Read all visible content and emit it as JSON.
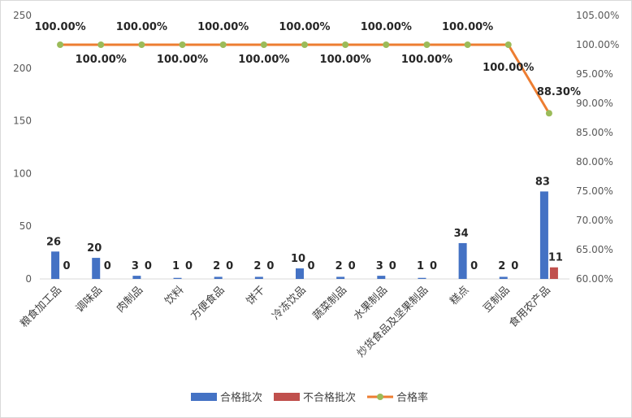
{
  "chart_data": {
    "type": "bar",
    "categories": [
      "粮食加工品",
      "调味品",
      "肉制品",
      "饮料",
      "方便食品",
      "饼干",
      "冷冻饮品",
      "蔬菜制品",
      "水果制品",
      "炒货食品及坚果制品",
      "糕点",
      "豆制品",
      "食用农产品"
    ],
    "series": [
      {
        "name": "合格批次",
        "type": "bar",
        "axis": "left",
        "values": [
          26,
          20,
          3,
          1,
          2,
          2,
          10,
          2,
          3,
          1,
          34,
          2,
          83
        ],
        "labels": [
          "26",
          "20",
          "3",
          "1",
          "2",
          "2",
          "10",
          "2",
          "3",
          "1",
          "34",
          "2",
          "83"
        ],
        "color": "#4472c4"
      },
      {
        "name": "不合格批次",
        "type": "bar",
        "axis": "left",
        "values": [
          0,
          0,
          0,
          0,
          0,
          0,
          0,
          0,
          0,
          0,
          0,
          0,
          11
        ],
        "labels": [
          "0",
          "0",
          "0",
          "0",
          "0",
          "0",
          "0",
          "0",
          "0",
          "0",
          "0",
          "0",
          "11"
        ],
        "color": "#c0504d"
      },
      {
        "name": "合格率",
        "type": "line",
        "axis": "right",
        "values": [
          100,
          100,
          100,
          100,
          100,
          100,
          100,
          100,
          100,
          100,
          100,
          100,
          88.3
        ],
        "labels": [
          "100.00%",
          "100.00%",
          "100.00%",
          "100.00%",
          "100.00%",
          "100.00%",
          "100.00%",
          "100.00%",
          "100.00%",
          "100.00%",
          "100.00%",
          "100.00%",
          "88.30%"
        ],
        "color": "#ed7d31",
        "marker_color": "#9bbb59"
      }
    ],
    "y_left": {
      "ylim": [
        0,
        250
      ],
      "ticks": [
        "0",
        "50",
        "100",
        "150",
        "200",
        "250"
      ]
    },
    "y_right": {
      "ylim": [
        60,
        105
      ],
      "ticks": [
        "60.00%",
        "65.00%",
        "70.00%",
        "75.00%",
        "80.00%",
        "85.00%",
        "90.00%",
        "95.00%",
        "100.00%",
        "105.00%"
      ]
    },
    "grid": false,
    "legend_position": "bottom"
  }
}
